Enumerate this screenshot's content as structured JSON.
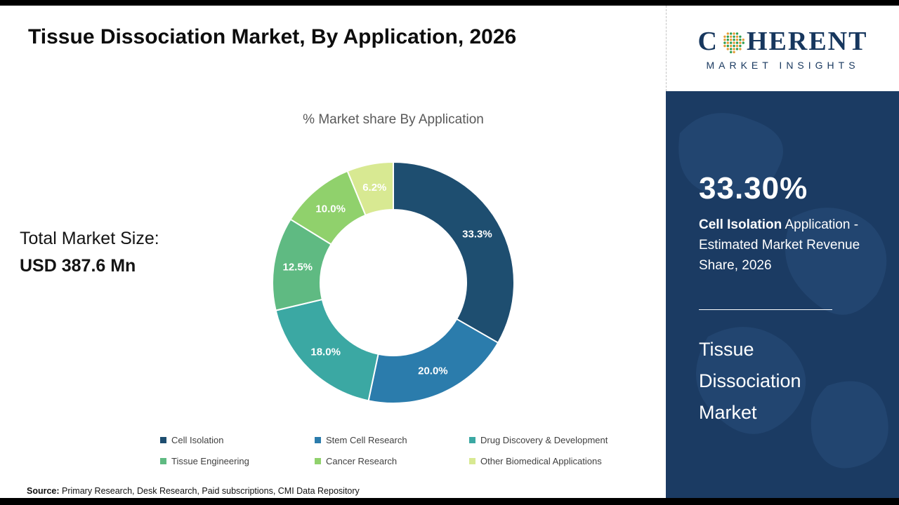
{
  "header": {
    "title": "Tissue Dissociation Market, By Application, 2026"
  },
  "logo": {
    "word_start": "C",
    "word_end": "HERENT",
    "tagline": "MARKET INSIGHTS"
  },
  "left_panel": {
    "total_label": "Total Market Size:",
    "total_value": "USD 387.6 Mn"
  },
  "chart_data": {
    "type": "pie",
    "donut": true,
    "title": "% Market share By Application",
    "categories": [
      "Cell Isolation",
      "Stem Cell Research",
      "Drug Discovery & Development",
      "Tissue Engineering",
      "Cancer Research",
      "Other Biomedical Applications"
    ],
    "values": [
      33.3,
      20.0,
      18.0,
      12.5,
      10.0,
      6.2
    ],
    "labels": [
      "33.3%",
      "20.0%",
      "18.0%",
      "12.5%",
      "10.0%",
      "6.2%"
    ],
    "colors": [
      "#1E4E70",
      "#2B7CAC",
      "#3BA8A3",
      "#5FBA82",
      "#90D16C",
      "#D8E992"
    ],
    "start_angle_deg": 0,
    "direction": "clockwise",
    "inner_radius_ratio": 0.6,
    "legend_position": "bottom"
  },
  "sidebar": {
    "stat_value": "33.30%",
    "stat_desc_bold": "Cell Isolation",
    "stat_desc_rest": " Application - Estimated Market Revenue Share, 2026",
    "market_name_lines": [
      "Tissue",
      "Dissociation",
      "Market"
    ]
  },
  "footer": {
    "source_label": "Source:",
    "source_text": " Primary Research, Desk Research, Paid subscriptions, CMI Data Repository"
  },
  "theme": {
    "sidebar_bg": "#1B3B63",
    "logo_navy": "#17375E",
    "top_bottom_bar": "#000000"
  }
}
